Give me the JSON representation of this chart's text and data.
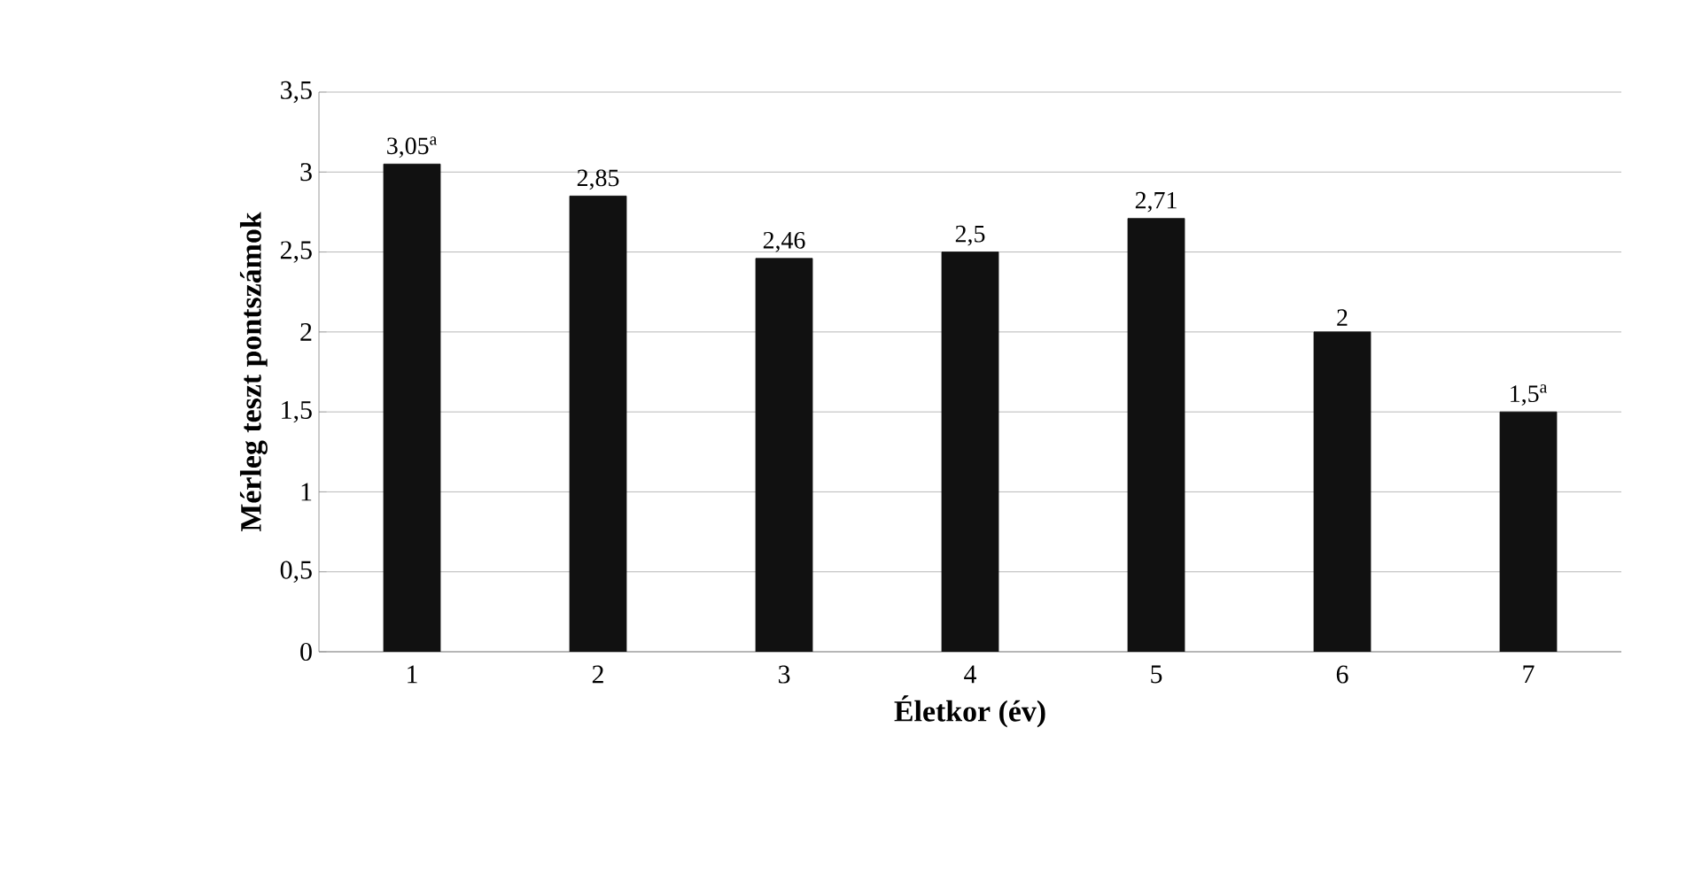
{
  "chart_data": {
    "type": "bar",
    "xlabel": "Életkor (év)",
    "ylabel": "Mérleg teszt pontszámok",
    "categories": [
      "1",
      "2",
      "3",
      "4",
      "5",
      "6",
      "7"
    ],
    "values": [
      3.05,
      2.85,
      2.46,
      2.5,
      2.71,
      2,
      1.5
    ],
    "value_labels": [
      "3,05$^{a}$",
      "2,85",
      "2,46",
      "2,5",
      "2,71",
      "2",
      "1,5$^{a}$"
    ],
    "color": "#111111",
    "ylim": [
      0,
      3.5
    ],
    "yticks": [
      0,
      {
        "value": 0.5,
        "label": "0,5"
      },
      1,
      {
        "value": 1.5,
        "label": "1,5"
      },
      2,
      {
        "value": 2.5,
        "label": "2,5"
      },
      3,
      {
        "value": 3.5,
        "label": "3,5"
      }
    ],
    "grid": "y"
  }
}
